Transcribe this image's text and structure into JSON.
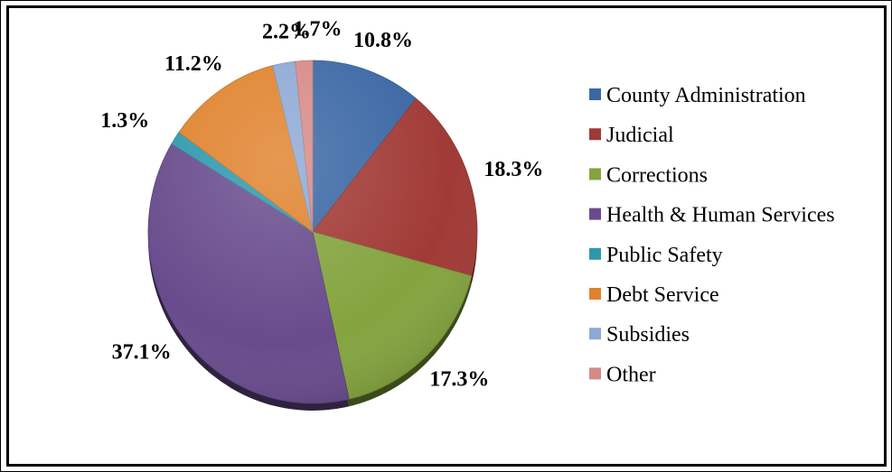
{
  "chart_data": {
    "type": "pie",
    "title": "",
    "legend_position": "right",
    "categories": [
      "County Administration",
      "Judicial",
      "Corrections",
      "Health & Human Services",
      "Public Safety",
      "Debt Service",
      "Subsidies",
      "Other"
    ],
    "values": [
      10.8,
      18.3,
      17.3,
      37.1,
      1.3,
      11.2,
      2.2,
      1.7
    ],
    "labels": [
      "10.8%",
      "18.3%",
      "17.3%",
      "37.1%",
      "1.3%",
      "11.2%",
      "2.2%",
      "1.7%"
    ],
    "colors": [
      "#3a67a4",
      "#a13a36",
      "#84a43f",
      "#684b8c",
      "#2e98ad",
      "#e0822c",
      "#8ea8d4",
      "#d58a87"
    ]
  }
}
